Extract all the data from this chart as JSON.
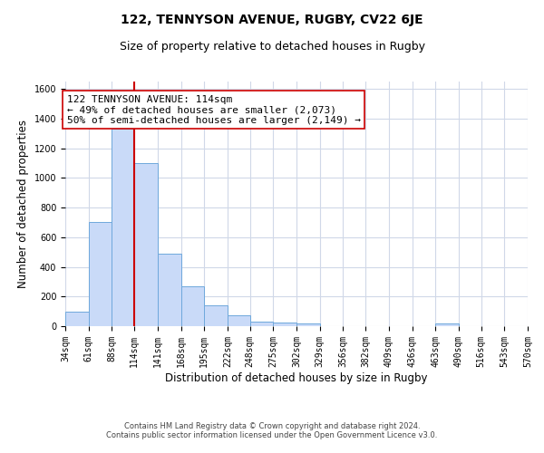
{
  "title": "122, TENNYSON AVENUE, RUGBY, CV22 6JE",
  "subtitle": "Size of property relative to detached houses in Rugby",
  "xlabel": "Distribution of detached houses by size in Rugby",
  "ylabel": "Number of detached properties",
  "footer_line1": "Contains HM Land Registry data © Crown copyright and database right 2024.",
  "footer_line2": "Contains public sector information licensed under the Open Government Licence v3.0.",
  "bin_edges": [
    34,
    61,
    88,
    114,
    141,
    168,
    195,
    222,
    248,
    275,
    302,
    329,
    356,
    382,
    409,
    436,
    463,
    490,
    516,
    543,
    570
  ],
  "bar_heights": [
    100,
    700,
    1330,
    1100,
    490,
    270,
    140,
    75,
    30,
    25,
    20,
    0,
    0,
    0,
    0,
    0,
    20,
    0,
    0,
    0
  ],
  "bar_color": "#c9daf8",
  "bar_edge_color": "#6fa8dc",
  "marker_value": 114,
  "marker_color": "#cc0000",
  "annotation_line1": "122 TENNYSON AVENUE: 114sqm",
  "annotation_line2": "← 49% of detached houses are smaller (2,073)",
  "annotation_line3": "50% of semi-detached houses are larger (2,149) →",
  "annotation_box_color": "#ffffff",
  "annotation_box_edge_color": "#cc0000",
  "ylim": [
    0,
    1650
  ],
  "yticks": [
    0,
    200,
    400,
    600,
    800,
    1000,
    1200,
    1400,
    1600
  ],
  "background_color": "#ffffff",
  "grid_color": "#d0d8e8",
  "title_fontsize": 10,
  "subtitle_fontsize": 9,
  "axis_label_fontsize": 8.5,
  "tick_fontsize": 7,
  "annotation_fontsize": 8
}
